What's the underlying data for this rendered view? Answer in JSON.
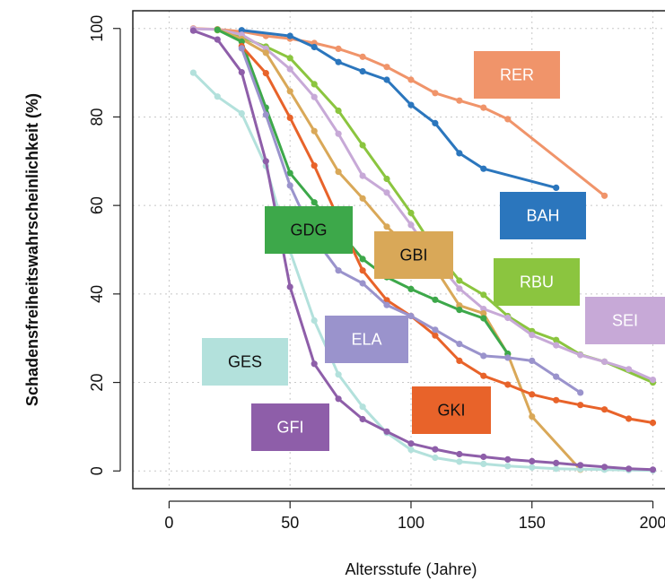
{
  "chart_data": {
    "type": "line",
    "xlabel": "Altersstufe (Jahre)",
    "ylabel": "Schadensfreiheitswahrscheinlichkeit (%)",
    "xlim": [
      -15,
      205
    ],
    "ylim": [
      -4,
      104
    ],
    "x_ticks": [
      0,
      50,
      100,
      150,
      200
    ],
    "y_ticks": [
      0,
      20,
      40,
      60,
      80,
      100
    ],
    "grid": true,
    "series": [
      {
        "name": "RER",
        "color": "#f0946a",
        "label_color": "#ffffff",
        "label_fill": "#f0946a",
        "points": [
          [
            10,
            100
          ],
          [
            20,
            99.8
          ],
          [
            30,
            99.3
          ],
          [
            40,
            98.3
          ],
          [
            50,
            97.7
          ],
          [
            60,
            96.7
          ],
          [
            70,
            95.4
          ],
          [
            80,
            93.6
          ],
          [
            90,
            91.3
          ],
          [
            100,
            88.4
          ],
          [
            110,
            85.4
          ],
          [
            120,
            83.7
          ],
          [
            130,
            82.1
          ],
          [
            140,
            79.5
          ],
          [
            180,
            62.2
          ]
        ]
      },
      {
        "name": "BAH",
        "color": "#2b76bd",
        "label_color": "#ffffff",
        "label_fill": "#2b76bd",
        "points": [
          [
            30,
            99.6
          ],
          [
            50,
            98.3
          ],
          [
            60,
            95.8
          ],
          [
            70,
            92.4
          ],
          [
            80,
            90.3
          ],
          [
            90,
            88.4
          ],
          [
            100,
            82.7
          ],
          [
            110,
            78.6
          ],
          [
            120,
            71.8
          ],
          [
            130,
            68.3
          ],
          [
            160,
            64.0
          ]
        ]
      },
      {
        "name": "RBU",
        "color": "#8bc53f",
        "label_color": "#ffffff",
        "label_fill": "#8bc53f",
        "points": [
          [
            20,
            99.6
          ],
          [
            30,
            98.0
          ],
          [
            40,
            95.9
          ],
          [
            50,
            93.3
          ],
          [
            60,
            87.4
          ],
          [
            70,
            81.4
          ],
          [
            80,
            73.6
          ],
          [
            90,
            66.0
          ],
          [
            100,
            58.3
          ],
          [
            110,
            49.9
          ],
          [
            120,
            43.0
          ],
          [
            130,
            39.8
          ],
          [
            140,
            35.0
          ],
          [
            150,
            31.6
          ],
          [
            160,
            29.6
          ],
          [
            170,
            26.3
          ],
          [
            180,
            24.7
          ],
          [
            200,
            20.0
          ]
        ]
      },
      {
        "name": "SEI",
        "color": "#c7a9d7",
        "label_color": "#ffffff",
        "label_fill": "#c7a9d7",
        "points": [
          [
            10,
            99.9
          ],
          [
            20,
            99.8
          ],
          [
            30,
            98.6
          ],
          [
            40,
            95.4
          ],
          [
            50,
            90.8
          ],
          [
            60,
            84.5
          ],
          [
            70,
            76.2
          ],
          [
            80,
            66.7
          ],
          [
            90,
            62.9
          ],
          [
            100,
            55.6
          ],
          [
            110,
            47.7
          ],
          [
            120,
            41.2
          ],
          [
            130,
            36.6
          ],
          [
            140,
            34.6
          ],
          [
            150,
            30.7
          ],
          [
            160,
            28.4
          ],
          [
            170,
            26.2
          ],
          [
            180,
            24.7
          ],
          [
            190,
            23.0
          ],
          [
            200,
            20.6
          ]
        ]
      },
      {
        "name": "GBI",
        "color": "#d9a858",
        "label_color": "#111111",
        "label_fill": "#d9a858",
        "points": [
          [
            20,
            99.8
          ],
          [
            30,
            97.6
          ],
          [
            40,
            94.5
          ],
          [
            50,
            85.8
          ],
          [
            60,
            76.8
          ],
          [
            70,
            67.6
          ],
          [
            80,
            61.6
          ],
          [
            90,
            55.2
          ],
          [
            100,
            50.1
          ],
          [
            110,
            45.8
          ],
          [
            120,
            37.4
          ],
          [
            130,
            35.6
          ],
          [
            140,
            26.4
          ],
          [
            150,
            12.3
          ],
          [
            170,
            0.3
          ]
        ]
      },
      {
        "name": "GDG",
        "color": "#3da84a",
        "label_color": "#111111",
        "label_fill": "#3da84a",
        "points": [
          [
            20,
            99.7
          ],
          [
            30,
            97.0
          ],
          [
            40,
            82.1
          ],
          [
            50,
            67.3
          ],
          [
            60,
            60.7
          ],
          [
            70,
            54.3
          ],
          [
            80,
            47.9
          ],
          [
            90,
            43.8
          ],
          [
            100,
            41.1
          ],
          [
            110,
            38.7
          ],
          [
            120,
            36.4
          ],
          [
            130,
            34.5
          ],
          [
            140,
            26.5
          ]
        ]
      },
      {
        "name": "GKI",
        "color": "#e8632a",
        "label_color": "#111111",
        "label_fill": "#e8632a",
        "points": [
          [
            30,
            96.0
          ],
          [
            40,
            89.9
          ],
          [
            50,
            79.8
          ],
          [
            60,
            69.0
          ],
          [
            70,
            57.0
          ],
          [
            80,
            45.3
          ],
          [
            90,
            38.6
          ],
          [
            100,
            35.0
          ],
          [
            110,
            30.6
          ],
          [
            120,
            24.9
          ],
          [
            130,
            21.5
          ],
          [
            140,
            19.5
          ],
          [
            150,
            17.3
          ],
          [
            160,
            16.0
          ],
          [
            170,
            14.9
          ],
          [
            180,
            13.9
          ],
          [
            190,
            11.8
          ],
          [
            200,
            10.9
          ]
        ]
      },
      {
        "name": "ELA",
        "color": "#9a93cc",
        "label_color": "#ffffff",
        "label_fill": "#9a93cc",
        "points": [
          [
            30,
            95.5
          ],
          [
            40,
            80.5
          ],
          [
            50,
            64.5
          ],
          [
            60,
            52.6
          ],
          [
            70,
            45.3
          ],
          [
            80,
            42.4
          ],
          [
            90,
            37.5
          ],
          [
            100,
            35.0
          ],
          [
            110,
            31.9
          ],
          [
            120,
            28.7
          ],
          [
            130,
            26.0
          ],
          [
            140,
            25.6
          ],
          [
            150,
            24.9
          ],
          [
            160,
            21.3
          ],
          [
            170,
            17.7
          ]
        ]
      },
      {
        "name": "GES",
        "color": "#b3e1dc",
        "label_color": "#111111",
        "label_fill": "#b3e1dc",
        "points": [
          [
            10,
            90.0
          ],
          [
            20,
            84.6
          ],
          [
            30,
            80.8
          ],
          [
            40,
            68.9
          ],
          [
            50,
            49.7
          ],
          [
            60,
            34.0
          ],
          [
            70,
            21.8
          ],
          [
            80,
            14.5
          ],
          [
            90,
            8.6
          ],
          [
            100,
            4.8
          ],
          [
            110,
            3.0
          ],
          [
            120,
            2.1
          ],
          [
            130,
            1.6
          ],
          [
            140,
            1.1
          ],
          [
            150,
            0.8
          ],
          [
            160,
            0.5
          ],
          [
            170,
            0.4
          ],
          [
            180,
            0.3
          ],
          [
            190,
            0.2
          ],
          [
            200,
            0.1
          ]
        ]
      },
      {
        "name": "GFI",
        "color": "#8e5ea9",
        "label_color": "#ffffff",
        "label_fill": "#8e5ea9",
        "points": [
          [
            10,
            99.5
          ],
          [
            20,
            97.5
          ],
          [
            30,
            90.1
          ],
          [
            40,
            70.0
          ],
          [
            50,
            41.6
          ],
          [
            60,
            24.2
          ],
          [
            70,
            16.3
          ],
          [
            80,
            11.7
          ],
          [
            90,
            8.9
          ],
          [
            100,
            6.2
          ],
          [
            110,
            4.9
          ],
          [
            120,
            3.8
          ],
          [
            130,
            3.2
          ],
          [
            140,
            2.6
          ],
          [
            150,
            2.2
          ],
          [
            160,
            1.8
          ],
          [
            170,
            1.3
          ],
          [
            180,
            0.9
          ],
          [
            190,
            0.5
          ],
          [
            200,
            0.3
          ]
        ]
      }
    ]
  }
}
